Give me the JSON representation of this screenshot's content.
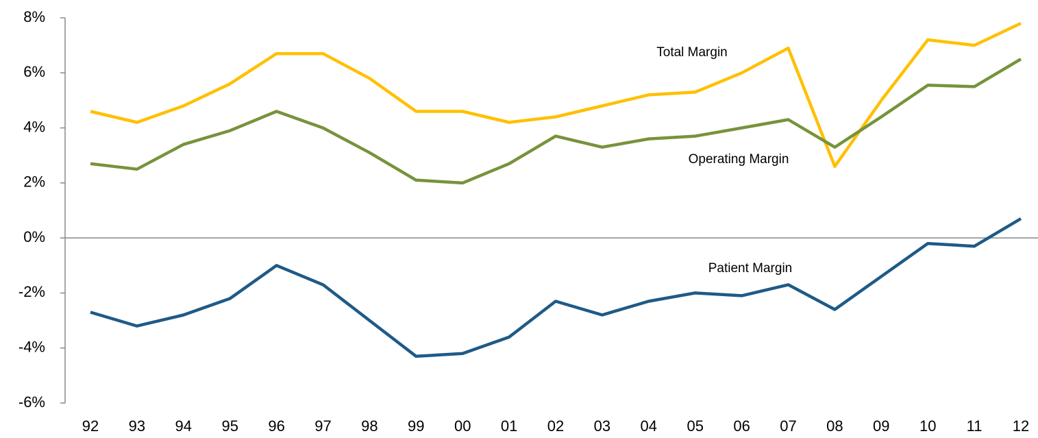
{
  "chart_data": {
    "type": "line",
    "categories": [
      "92",
      "93",
      "94",
      "95",
      "96",
      "97",
      "98",
      "99",
      "00",
      "01",
      "02",
      "03",
      "04",
      "05",
      "06",
      "07",
      "08",
      "09",
      "10",
      "11",
      "12"
    ],
    "series": [
      {
        "name": "Total Margin",
        "color": "#FFC000",
        "values": [
          4.6,
          4.2,
          4.8,
          5.6,
          6.7,
          6.7,
          5.8,
          4.6,
          4.6,
          4.2,
          4.4,
          4.8,
          5.2,
          5.3,
          6.0,
          6.9,
          2.6,
          5.0,
          7.2,
          7.0,
          7.8
        ]
      },
      {
        "name": "Operating Margin",
        "color": "#77933C",
        "values": [
          2.7,
          2.5,
          3.4,
          3.9,
          4.6,
          4.0,
          3.1,
          2.1,
          2.0,
          2.7,
          3.7,
          3.3,
          3.6,
          3.7,
          4.0,
          4.3,
          3.3,
          4.4,
          5.55,
          5.5,
          6.5
        ]
      },
      {
        "name": "Patient Margin",
        "color": "#1F5A87",
        "values": [
          -2.7,
          -3.2,
          -2.8,
          -2.2,
          -1.0,
          -1.7,
          -3.0,
          -4.3,
          -4.2,
          -3.6,
          -2.3,
          -2.8,
          -2.3,
          -2.0,
          -2.1,
          -1.7,
          -2.6,
          -1.4,
          -0.2,
          -0.3,
          0.7
        ]
      }
    ],
    "ylim": [
      -6,
      8
    ],
    "yticks": [
      {
        "value": -6,
        "label": "-6%"
      },
      {
        "value": -4,
        "label": "-4%"
      },
      {
        "value": -2,
        "label": "-2%"
      },
      {
        "value": 0,
        "label": "0%"
      },
      {
        "value": 2,
        "label": "2%"
      },
      {
        "value": 4,
        "label": "4%"
      },
      {
        "value": 6,
        "label": "6%"
      },
      {
        "value": 8,
        "label": "8%"
      }
    ]
  }
}
